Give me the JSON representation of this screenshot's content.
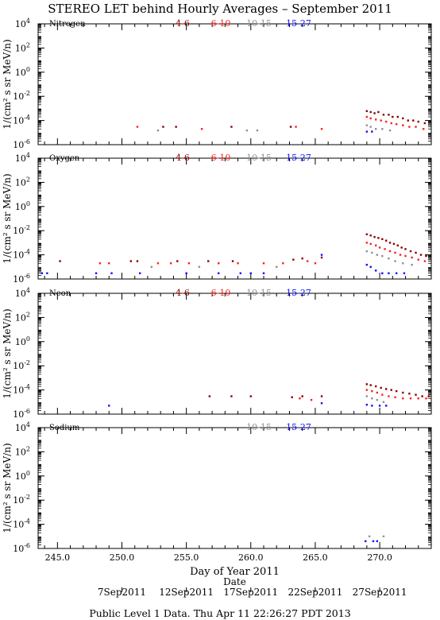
{
  "header": {
    "title": "STEREO LET behind Hourly Averages – September 2011"
  },
  "footer": {
    "text": "Public Level 1 Data. Thu Apr 11 22:26:27 PDT 2013"
  },
  "xaxis": {
    "label": "Day of Year 2011",
    "range": [
      243.5,
      274.0
    ],
    "ticks": [
      {
        "value": 245,
        "label": "245.0"
      },
      {
        "value": 250,
        "label": "250.0"
      },
      {
        "value": 255,
        "label": "255.0"
      },
      {
        "value": 260,
        "label": "260.0"
      },
      {
        "value": 265,
        "label": "265.0"
      },
      {
        "value": 270,
        "label": "270.0"
      }
    ]
  },
  "date_axis": {
    "label": "Date",
    "ticks": [
      {
        "value": 250,
        "label": "7Sep2011"
      },
      {
        "value": 255,
        "label": "12Sep2011"
      },
      {
        "value": 260,
        "label": "17Sep2011"
      },
      {
        "value": 265,
        "label": "22Sep2011"
      },
      {
        "value": 270,
        "label": "27Sep2011"
      }
    ]
  },
  "colors": {
    "4-6": "#8b0000",
    "6-10": "#ff2020",
    "10-15": "#909090",
    "15-27": "#1010ff"
  },
  "chart_data": [
    {
      "type": "scatter",
      "panel": "nitrogen",
      "title": "Nitrogen",
      "ylabel": "1/(cm² s sr MeV/n)",
      "yscale": "log",
      "ylim_exp": [
        -6,
        4
      ],
      "yticks": [
        {
          "exp": 4
        },
        {
          "exp": 2
        },
        {
          "exp": 0
        },
        {
          "exp": -2
        },
        {
          "exp": -4
        },
        {
          "exp": -6
        }
      ],
      "legend": [
        "4-6",
        "6-10",
        "10-15",
        "15-27"
      ],
      "series": [
        {
          "name": "4-6",
          "points": [
            [
              253.2,
              3e-05
            ],
            [
              254.2,
              3e-05
            ],
            [
              258.5,
              3e-05
            ],
            [
              263.1,
              3e-05
            ],
            [
              269.0,
              0.0006
            ],
            [
              269.3,
              0.0005
            ],
            [
              269.6,
              0.0004
            ],
            [
              269.9,
              0.0005
            ],
            [
              270.3,
              0.0003
            ],
            [
              270.7,
              0.0003
            ],
            [
              271.0,
              0.0002
            ],
            [
              271.4,
              0.0002
            ],
            [
              271.8,
              0.00015
            ],
            [
              272.2,
              0.0001
            ],
            [
              272.6,
              0.0001
            ],
            [
              273.0,
              8e-05
            ],
            [
              273.5,
              6e-05
            ]
          ]
        },
        {
          "name": "6-10",
          "points": [
            [
              251.2,
              3e-05
            ],
            [
              256.2,
              2e-05
            ],
            [
              263.5,
              3e-05
            ],
            [
              265.5,
              2e-05
            ],
            [
              269.0,
              0.0002
            ],
            [
              269.3,
              0.00015
            ],
            [
              269.7,
              0.00012
            ],
            [
              270.1,
              0.0001
            ],
            [
              270.5,
              8e-05
            ],
            [
              270.9,
              6e-05
            ],
            [
              271.3,
              5e-05
            ],
            [
              271.8,
              4e-05
            ],
            [
              272.3,
              3e-05
            ],
            [
              272.8,
              3e-05
            ],
            [
              273.4,
              2e-05
            ]
          ]
        },
        {
          "name": "10-15",
          "points": [
            [
              252.8,
              1.5e-05
            ],
            [
              259.7,
              1.5e-05
            ],
            [
              260.5,
              1.5e-05
            ],
            [
              269.0,
              4e-05
            ],
            [
              269.3,
              3e-05
            ],
            [
              269.7,
              2e-05
            ],
            [
              270.2,
              2e-05
            ],
            [
              270.8,
              1.5e-05
            ]
          ]
        },
        {
          "name": "15-27",
          "points": [
            [
              269.0,
              1.2e-05
            ],
            [
              269.4,
              1.2e-05
            ]
          ]
        }
      ]
    },
    {
      "type": "scatter",
      "panel": "oxygen",
      "title": "Oxygen",
      "ylabel": "1/(cm² s sr MeV/n)",
      "yscale": "log",
      "ylim_exp": [
        -6,
        4
      ],
      "yticks": [
        {
          "exp": 4
        },
        {
          "exp": 2
        },
        {
          "exp": 0
        },
        {
          "exp": -2
        },
        {
          "exp": -4
        },
        {
          "exp": -6
        }
      ],
      "legend": [
        "4-6",
        "6-10",
        "10-15",
        "15-27"
      ],
      "series": [
        {
          "name": "4-6",
          "points": [
            [
              245.2,
              3e-05
            ],
            [
              250.7,
              3e-05
            ],
            [
              251.2,
              3e-05
            ],
            [
              254.3,
              3e-05
            ],
            [
              256.7,
              3e-05
            ],
            [
              258.6,
              3e-05
            ],
            [
              263.3,
              4e-05
            ],
            [
              264.0,
              5e-05
            ],
            [
              265.5,
              6e-05
            ],
            [
              269.0,
              0.005
            ],
            [
              269.3,
              0.004
            ],
            [
              269.6,
              0.003
            ],
            [
              269.9,
              0.0025
            ],
            [
              270.2,
              0.002
            ],
            [
              270.5,
              0.0015
            ],
            [
              270.8,
              0.001
            ],
            [
              271.1,
              0.0008
            ],
            [
              271.4,
              0.0006
            ],
            [
              271.7,
              0.0004
            ],
            [
              272.0,
              0.0003
            ],
            [
              272.4,
              0.0002
            ],
            [
              272.8,
              0.00015
            ],
            [
              273.2,
              0.0001
            ],
            [
              273.6,
              8e-05
            ]
          ]
        },
        {
          "name": "6-10",
          "points": [
            [
              248.3,
              2e-05
            ],
            [
              249.0,
              2e-05
            ],
            [
              252.8,
              2e-05
            ],
            [
              253.8,
              2e-05
            ],
            [
              255.2,
              2e-05
            ],
            [
              257.5,
              2e-05
            ],
            [
              259.0,
              2e-05
            ],
            [
              261.0,
              2e-05
            ],
            [
              262.5,
              2e-05
            ],
            [
              264.4,
              3e-05
            ],
            [
              265.0,
              2e-05
            ],
            [
              269.0,
              0.001
            ],
            [
              269.3,
              0.0008
            ],
            [
              269.7,
              0.0006
            ],
            [
              270.0,
              0.0004
            ],
            [
              270.4,
              0.0003
            ],
            [
              270.8,
              0.0002
            ],
            [
              271.2,
              0.00015
            ],
            [
              271.6,
              0.0001
            ],
            [
              272.0,
              8e-05
            ],
            [
              272.5,
              6e-05
            ],
            [
              273.0,
              4e-05
            ],
            [
              273.5,
              3e-05
            ]
          ]
        },
        {
          "name": "10-15",
          "points": [
            [
              252.3,
              1e-05
            ],
            [
              256.0,
              1e-05
            ],
            [
              262.0,
              1e-05
            ],
            [
              269.0,
              0.0002
            ],
            [
              269.4,
              0.00015
            ],
            [
              269.8,
              0.0001
            ],
            [
              270.2,
              8e-05
            ],
            [
              270.7,
              5e-05
            ],
            [
              271.2,
              3e-05
            ],
            [
              271.8,
              2e-05
            ],
            [
              272.5,
              1.5e-05
            ]
          ]
        },
        {
          "name": "15-27",
          "points": [
            [
              243.8,
              3e-06
            ],
            [
              244.2,
              3e-06
            ],
            [
              248.0,
              3e-06
            ],
            [
              249.2,
              3e-06
            ],
            [
              251.4,
              3e-06
            ],
            [
              255.0,
              3e-06
            ],
            [
              257.5,
              3e-06
            ],
            [
              259.2,
              3e-06
            ],
            [
              260.0,
              3e-06
            ],
            [
              261.0,
              3e-06
            ],
            [
              265.5,
              0.0001
            ],
            [
              269.0,
              1.5e-05
            ],
            [
              269.3,
              1e-05
            ],
            [
              269.7,
              5e-06
            ],
            [
              270.2,
              3e-06
            ],
            [
              270.7,
              3e-06
            ],
            [
              271.3,
              3e-06
            ],
            [
              271.9,
              3e-06
            ]
          ]
        }
      ]
    },
    {
      "type": "scatter",
      "panel": "neon",
      "title": "Neon",
      "ylabel": "1/(cm² s sr MeV/n)",
      "yscale": "log",
      "ylim_exp": [
        -6,
        4
      ],
      "yticks": [
        {
          "exp": 4
        },
        {
          "exp": 2
        },
        {
          "exp": 0
        },
        {
          "exp": -2
        },
        {
          "exp": -4
        },
        {
          "exp": -6
        }
      ],
      "legend": [
        "4-6",
        "6-10",
        "10-15",
        "15-27"
      ],
      "series": [
        {
          "name": "4-6",
          "points": [
            [
              256.8,
              3e-05
            ],
            [
              258.5,
              3e-05
            ],
            [
              260.0,
              3e-05
            ],
            [
              263.2,
              2.5e-05
            ],
            [
              264.0,
              3e-05
            ],
            [
              265.5,
              3e-05
            ],
            [
              269.0,
              0.0003
            ],
            [
              269.3,
              0.00025
            ],
            [
              269.7,
              0.0002
            ],
            [
              270.1,
              0.00015
            ],
            [
              270.5,
              0.00012
            ],
            [
              270.9,
              0.0001
            ],
            [
              271.3,
              8e-05
            ],
            [
              271.8,
              6e-05
            ],
            [
              272.3,
              5e-05
            ],
            [
              272.8,
              4e-05
            ],
            [
              273.3,
              3e-05
            ],
            [
              273.8,
              3e-05
            ]
          ]
        },
        {
          "name": "6-10",
          "points": [
            [
              263.8,
              2e-05
            ],
            [
              264.7,
              1.5e-05
            ],
            [
              269.0,
              0.0001
            ],
            [
              269.4,
              8e-05
            ],
            [
              269.8,
              6e-05
            ],
            [
              270.2,
              4e-05
            ],
            [
              270.7,
              3e-05
            ],
            [
              271.2,
              2.5e-05
            ],
            [
              271.8,
              2e-05
            ],
            [
              272.4,
              2e-05
            ],
            [
              273.0,
              2e-05
            ],
            [
              273.6,
              2e-05
            ]
          ]
        },
        {
          "name": "10-15",
          "points": [
            [
              269.0,
              3e-05
            ],
            [
              269.4,
              2e-05
            ],
            [
              269.8,
              1.5e-05
            ],
            [
              270.3,
              1e-05
            ]
          ]
        },
        {
          "name": "15-27",
          "points": [
            [
              249.0,
              5e-06
            ],
            [
              265.5,
              8e-06
            ],
            [
              269.0,
              6e-06
            ],
            [
              269.4,
              5e-06
            ],
            [
              270.0,
              5e-06
            ],
            [
              270.5,
              5e-06
            ]
          ]
        }
      ]
    },
    {
      "type": "scatter",
      "panel": "sodium",
      "title": "Sodium",
      "ylabel": "1/(cm² s sr MeV/n)",
      "yscale": "log",
      "ylim_exp": [
        -6,
        4
      ],
      "yticks": [
        {
          "exp": 4
        },
        {
          "exp": 2
        },
        {
          "exp": 0
        },
        {
          "exp": -2
        },
        {
          "exp": -4
        },
        {
          "exp": -6
        }
      ],
      "legend": [
        "10-15",
        "15-27"
      ],
      "series": [
        {
          "name": "10-15",
          "points": [
            [
              269.2,
              1e-05
            ],
            [
              270.3,
              1e-05
            ]
          ]
        },
        {
          "name": "15-27",
          "points": [
            [
              268.9,
              4e-06
            ],
            [
              269.5,
              4e-06
            ],
            [
              269.8,
              4e-06
            ]
          ]
        }
      ]
    }
  ]
}
